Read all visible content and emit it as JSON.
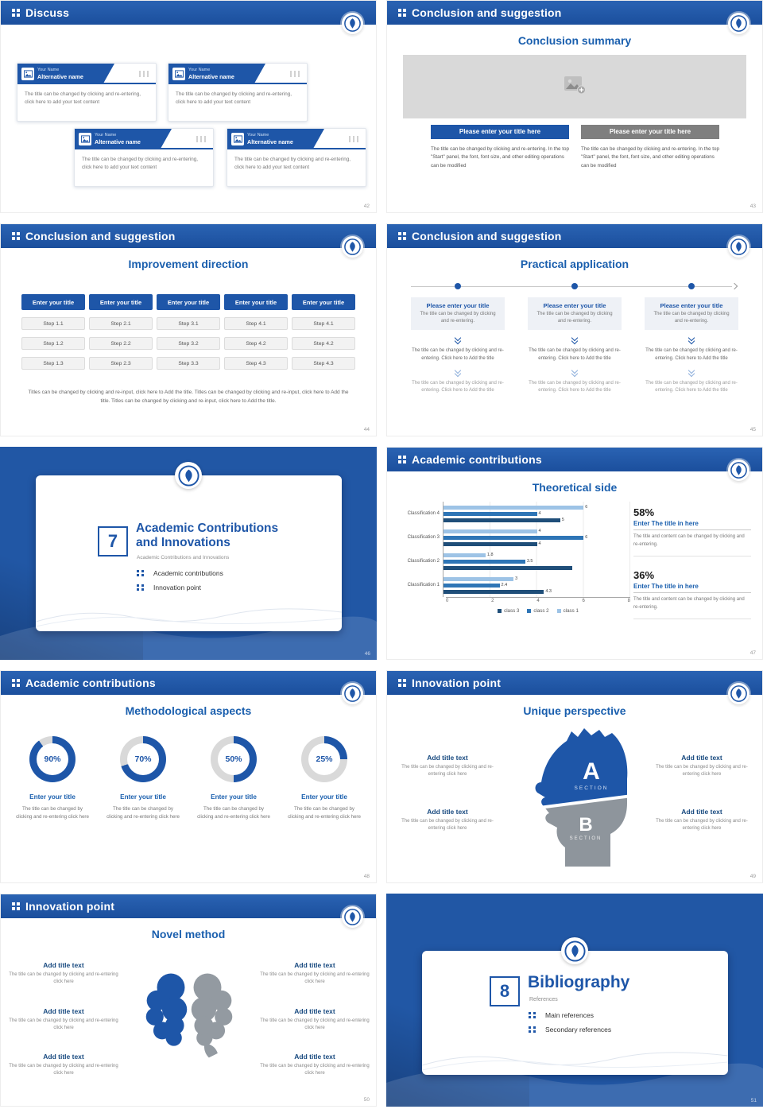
{
  "theme": {
    "accent": "#1e56a8",
    "accent_dark": "#1b4f9d",
    "title_blue": "#1a5fae",
    "gray_button": "#7f7f7f",
    "track": "#d9d9d9",
    "bar_dark": "#1f4e79",
    "bar_mid": "#2e75b6",
    "bar_light": "#9dc3e6"
  },
  "slides": [
    {
      "header": "Discuss",
      "page": "42",
      "cards": [
        {
          "name": "Your Name",
          "alt": "Alternative name",
          "desc": "The title can be changed by clicking and re-entering, click here to add your text content"
        },
        {
          "name": "Your Name",
          "alt": "Alternative name",
          "desc": "The title can be changed by clicking and re-entering, click here to add your text content"
        },
        {
          "name": "Your Name",
          "alt": "Alternative name",
          "desc": "The title can be changed by clicking and re-entering, click here to add your text content"
        },
        {
          "name": "Your Name",
          "alt": "Alternative name",
          "desc": "The title can be changed by clicking and re-entering, click here to add your text content"
        }
      ]
    },
    {
      "header": "Conclusion and suggestion",
      "page": "43",
      "title": "Conclusion summary",
      "cols": [
        {
          "button": "Please enter your title here",
          "desc": "The title can be changed by clicking and re-entering. In the top \"Start\" panel, the font, font size, and other editing operations can be modified"
        },
        {
          "button": "Please enter your title here",
          "desc": "The title can be changed by clicking and re-entering. In the top \"Start\" panel, the font, font size, and other editing operations can be modified"
        }
      ]
    },
    {
      "header": "Conclusion and suggestion",
      "page": "44",
      "title": "Improvement direction",
      "columns": [
        {
          "button": "Enter your title",
          "steps": [
            "Step 1.1",
            "Step 1.2",
            "Step 1.3"
          ]
        },
        {
          "button": "Enter your title",
          "steps": [
            "Step 2.1",
            "Step 2.2",
            "Step 2.3"
          ]
        },
        {
          "button": "Enter your title",
          "steps": [
            "Step 3.1",
            "Step 3.2",
            "Step 3.3"
          ]
        },
        {
          "button": "Enter your title",
          "steps": [
            "Step 4.1",
            "Step 4.2",
            "Step 4.3"
          ]
        },
        {
          "button": "Enter your title",
          "steps": [
            "Step 4.1",
            "Step 4.2",
            "Step 4.3"
          ]
        }
      ],
      "footer": "Titles can be changed by clicking and re-input, click here to Add the title. Titles can be changed by clicking and re-input, click here to Add the title. Titles can be changed by clicking and re-input, click here to Add the title."
    },
    {
      "header": "Conclusion and suggestion",
      "page": "45",
      "title": "Practical application",
      "columns": [
        {
          "title": "Please enter your title",
          "lead": "The title can be changed by clicking and re-entering.",
          "mid": "The title can be changed by clicking and re-entering. Click here to Add the title",
          "tail": "The title can be changed by clicking and re-entering. Click here to Add the title"
        },
        {
          "title": "Please enter your title",
          "lead": "The title can be changed by clicking and re-entering.",
          "mid": "The title can be changed by clicking and re-entering. Click here to Add the title",
          "tail": "The title can be changed by clicking and re-entering. Click here to Add the title"
        },
        {
          "title": "Please enter your title",
          "lead": "The title can be changed by clicking and re-entering.",
          "mid": "The title can be changed by clicking and re-entering. Click here to Add the title",
          "tail": "The title can be changed by clicking and re-entering. Click here to Add the title"
        }
      ]
    },
    {
      "page": "46",
      "number": "7",
      "title": "Academic Contributions and Innovations",
      "subtitle": "Academic Contributions and Innovations",
      "items": [
        "Academic contributions",
        "Innovation point"
      ]
    },
    {
      "header": "Academic contributions",
      "page": "47",
      "title": "Theoretical side",
      "chart_data": {
        "type": "bar",
        "orientation": "horizontal",
        "categories": [
          "Classification 1",
          "Classification 2",
          "Classification 3",
          "Classification 4"
        ],
        "series": [
          {
            "name": "class 1",
            "color": "#9dc3e6",
            "values": [
              3,
              1.8,
              4,
              6
            ]
          },
          {
            "name": "class 2",
            "color": "#2e75b6",
            "values": [
              2.4,
              3.5,
              6,
              4
            ]
          },
          {
            "name": "class 3",
            "color": "#1f4e79",
            "values": [
              4.3,
              5.5,
              4,
              5
            ]
          }
        ],
        "xlim": [
          0,
          8
        ],
        "xticks": [
          "0",
          "2",
          "4",
          "6",
          "8"
        ],
        "legend_position": "bottom",
        "grid": true
      },
      "stats": [
        {
          "value": "58%",
          "title": "Enter The title in here",
          "desc": "The title and content can be changed by clicking and re-entering."
        },
        {
          "value": "36%",
          "title": "Enter The title in here",
          "desc": "The title and content can be changed by clicking and re-entering."
        }
      ]
    },
    {
      "header": "Academic contributions",
      "page": "48",
      "title": "Methodological aspects",
      "donuts": [
        {
          "percent": 90,
          "label": "90%",
          "title": "Enter your title",
          "desc": "The title can be changed by clicking and re-entering click here"
        },
        {
          "percent": 70,
          "label": "70%",
          "title": "Enter your title",
          "desc": "The title can be changed by clicking and re-entering click here"
        },
        {
          "percent": 50,
          "label": "50%",
          "title": "Enter your title",
          "desc": "The title can be changed by clicking and re-entering click here"
        },
        {
          "percent": 25,
          "label": "25%",
          "title": "Enter your title",
          "desc": "The title can be changed by clicking and re-entering click here"
        }
      ]
    },
    {
      "header": "Innovation point",
      "page": "49",
      "title": "Unique perspective",
      "sectionA": {
        "letter": "A",
        "caption": "SECTION"
      },
      "sectionB": {
        "letter": "B",
        "caption": "SECTION"
      },
      "blocks": {
        "left": [
          {
            "title": "Add title text",
            "desc": "The title can be changed by clicking and re-entering click here"
          },
          {
            "title": "Add title text",
            "desc": "The title can be changed by clicking and re-entering click here"
          }
        ],
        "right": [
          {
            "title": "Add title text",
            "desc": "The title can be changed by clicking and re-entering click here"
          },
          {
            "title": "Add title text",
            "desc": "The title can be changed by clicking and re-entering click here"
          }
        ]
      }
    },
    {
      "header": "Innovation point",
      "page": "50",
      "title": "Novel method",
      "blocks": {
        "left": [
          {
            "title": "Add title text",
            "desc": "The title can be changed by clicking and re-entering click here"
          },
          {
            "title": "Add title text",
            "desc": "The title can be changed by clicking and re-entering click here"
          },
          {
            "title": "Add title text",
            "desc": "The title can be changed by clicking and re-entering click here"
          }
        ],
        "right": [
          {
            "title": "Add title text",
            "desc": "The title can be changed by clicking and re-entering click here"
          },
          {
            "title": "Add title text",
            "desc": "The title can be changed by clicking and re-entering click here"
          },
          {
            "title": "Add title text",
            "desc": "The title can be changed by clicking and re-entering click here"
          }
        ]
      }
    },
    {
      "page": "51",
      "number": "8",
      "title": "Bibliography",
      "subtitle": "References",
      "items": [
        "Main references",
        "Secondary references"
      ]
    }
  ]
}
